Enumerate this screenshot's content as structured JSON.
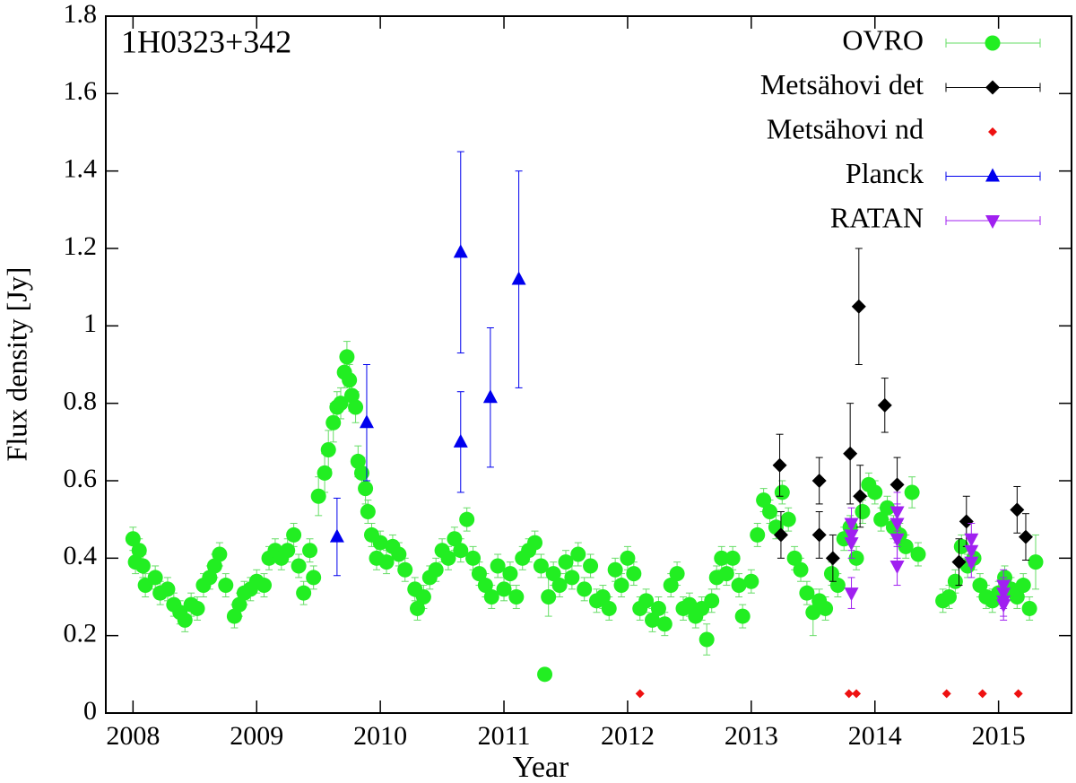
{
  "chart_data": {
    "type": "scatter",
    "annotation": "1H0323+342",
    "xlabel": "Year",
    "ylabel": "Flux density [Jy]",
    "xlim": [
      2007.78,
      2015.59
    ],
    "ylim": [
      0,
      1.8
    ],
    "xticks": [
      2008,
      2009,
      2010,
      2011,
      2012,
      2013,
      2014,
      2015
    ],
    "yticks": [
      0,
      0.2,
      0.4,
      0.6,
      0.8,
      1,
      1.2,
      1.4,
      1.6,
      1.8
    ],
    "legend": "upper right",
    "series": [
      {
        "name": "OVRO",
        "color": "#22ee22",
        "marker": "circle",
        "x": [
          2008.0,
          2008.02,
          2008.05,
          2008.08,
          2008.1,
          2008.18,
          2008.22,
          2008.28,
          2008.33,
          2008.38,
          2008.42,
          2008.47,
          2008.52,
          2008.57,
          2008.62,
          2008.66,
          2008.7,
          2008.75,
          2008.82,
          2008.86,
          2008.9,
          2008.95,
          2009.0,
          2009.06,
          2009.1,
          2009.15,
          2009.2,
          2009.25,
          2009.3,
          2009.34,
          2009.38,
          2009.43,
          2009.46,
          2009.5,
          2009.55,
          2009.58,
          2009.62,
          2009.65,
          2009.68,
          2009.71,
          2009.73,
          2009.75,
          2009.77,
          2009.8,
          2009.82,
          2009.85,
          2009.88,
          2009.9,
          2009.93,
          2009.97,
          2010.0,
          2010.05,
          2010.1,
          2010.15,
          2010.2,
          2010.28,
          2010.3,
          2010.35,
          2010.4,
          2010.45,
          2010.5,
          2010.55,
          2010.6,
          2010.65,
          2010.7,
          2010.75,
          2010.8,
          2010.85,
          2010.9,
          2010.95,
          2011.0,
          2011.05,
          2011.1,
          2011.15,
          2011.2,
          2011.25,
          2011.3,
          2011.33,
          2011.36,
          2011.4,
          2011.45,
          2011.5,
          2011.55,
          2011.6,
          2011.65,
          2011.7,
          2011.75,
          2011.8,
          2011.85,
          2011.9,
          2011.95,
          2012.0,
          2012.05,
          2012.1,
          2012.15,
          2012.2,
          2012.25,
          2012.3,
          2012.35,
          2012.4,
          2012.45,
          2012.5,
          2012.55,
          2012.6,
          2012.64,
          2012.68,
          2012.72,
          2012.76,
          2012.8,
          2012.85,
          2012.9,
          2012.93,
          2013.0,
          2013.05,
          2013.1,
          2013.15,
          2013.2,
          2013.25,
          2013.3,
          2013.35,
          2013.4,
          2013.45,
          2013.5,
          2013.55,
          2013.6,
          2013.65,
          2013.7,
          2013.75,
          2013.8,
          2013.85,
          2013.9,
          2013.95,
          2014.0,
          2014.05,
          2014.1,
          2014.15,
          2014.2,
          2014.25,
          2014.3,
          2014.35,
          2014.55,
          2014.6,
          2014.65,
          2014.7,
          2014.75,
          2014.8,
          2014.85,
          2014.9,
          2014.95,
          2015.0,
          2015.05,
          2015.1,
          2015.15,
          2015.2,
          2015.25,
          2015.3
        ],
        "values": [
          0.45,
          0.39,
          0.42,
          0.38,
          0.33,
          0.35,
          0.31,
          0.32,
          0.28,
          0.26,
          0.24,
          0.28,
          0.27,
          0.33,
          0.35,
          0.38,
          0.41,
          0.33,
          0.25,
          0.28,
          0.31,
          0.32,
          0.34,
          0.33,
          0.4,
          0.42,
          0.4,
          0.42,
          0.46,
          0.38,
          0.31,
          0.42,
          0.35,
          0.56,
          0.62,
          0.68,
          0.75,
          0.79,
          0.8,
          0.88,
          0.92,
          0.86,
          0.82,
          0.79,
          0.65,
          0.62,
          0.58,
          0.52,
          0.46,
          0.4,
          0.44,
          0.39,
          0.43,
          0.41,
          0.37,
          0.32,
          0.27,
          0.3,
          0.35,
          0.37,
          0.42,
          0.4,
          0.45,
          0.42,
          0.5,
          0.4,
          0.36,
          0.33,
          0.3,
          0.38,
          0.32,
          0.36,
          0.3,
          0.4,
          0.42,
          0.44,
          0.38,
          0.1,
          0.3,
          0.36,
          0.33,
          0.39,
          0.35,
          0.41,
          0.32,
          0.38,
          0.29,
          0.3,
          0.27,
          0.37,
          0.33,
          0.4,
          0.36,
          0.27,
          0.29,
          0.24,
          0.27,
          0.23,
          0.33,
          0.36,
          0.27,
          0.28,
          0.25,
          0.27,
          0.19,
          0.29,
          0.35,
          0.4,
          0.36,
          0.4,
          0.33,
          0.25,
          0.34,
          0.46,
          0.55,
          0.52,
          0.48,
          0.57,
          0.5,
          0.4,
          0.37,
          0.31,
          0.26,
          0.29,
          0.27,
          0.36,
          0.33,
          0.45,
          0.48,
          0.4,
          0.52,
          0.59,
          0.57,
          0.5,
          0.53,
          0.48,
          0.46,
          0.43,
          0.57,
          0.41,
          0.29,
          0.3,
          0.34,
          0.43,
          0.38,
          0.4,
          0.33,
          0.3,
          0.29,
          0.31,
          0.35,
          0.32,
          0.3,
          0.33,
          0.27,
          0.39
        ],
        "errors": [
          0.03,
          0.03,
          0.03,
          0.03,
          0.03,
          0.03,
          0.03,
          0.03,
          0.03,
          0.03,
          0.03,
          0.03,
          0.03,
          0.03,
          0.03,
          0.03,
          0.03,
          0.03,
          0.03,
          0.03,
          0.03,
          0.03,
          0.03,
          0.03,
          0.03,
          0.03,
          0.03,
          0.03,
          0.03,
          0.03,
          0.03,
          0.03,
          0.03,
          0.05,
          0.05,
          0.05,
          0.05,
          0.04,
          0.04,
          0.04,
          0.04,
          0.04,
          0.04,
          0.04,
          0.04,
          0.04,
          0.04,
          0.03,
          0.03,
          0.03,
          0.03,
          0.03,
          0.03,
          0.03,
          0.03,
          0.03,
          0.03,
          0.03,
          0.03,
          0.03,
          0.03,
          0.03,
          0.03,
          0.03,
          0.03,
          0.03,
          0.03,
          0.03,
          0.03,
          0.03,
          0.03,
          0.03,
          0.03,
          0.03,
          0.03,
          0.03,
          0.03,
          0.01,
          0.05,
          0.03,
          0.03,
          0.03,
          0.03,
          0.03,
          0.03,
          0.03,
          0.03,
          0.03,
          0.03,
          0.03,
          0.03,
          0.03,
          0.03,
          0.03,
          0.03,
          0.03,
          0.03,
          0.03,
          0.03,
          0.03,
          0.03,
          0.03,
          0.03,
          0.03,
          0.04,
          0.03,
          0.03,
          0.03,
          0.03,
          0.03,
          0.03,
          0.03,
          0.03,
          0.03,
          0.03,
          0.03,
          0.03,
          0.03,
          0.03,
          0.03,
          0.03,
          0.03,
          0.06,
          0.03,
          0.03,
          0.03,
          0.03,
          0.03,
          0.03,
          0.03,
          0.03,
          0.03,
          0.03,
          0.03,
          0.03,
          0.03,
          0.03,
          0.03,
          0.04,
          0.03,
          0.03,
          0.03,
          0.03,
          0.03,
          0.03,
          0.03,
          0.03,
          0.03,
          0.03,
          0.03,
          0.03,
          0.03,
          0.03,
          0.03,
          0.03,
          0.07
        ]
      },
      {
        "name": "Metsähovi det",
        "color": "#000000",
        "marker": "diamond",
        "x": [
          2013.23,
          2013.24,
          2013.55,
          2013.55,
          2013.66,
          2013.8,
          2013.87,
          2013.88,
          2014.08,
          2014.18,
          2014.68,
          2014.74,
          2015.15,
          2015.22
        ],
        "values": [
          0.64,
          0.46,
          0.6,
          0.46,
          0.4,
          0.67,
          1.05,
          0.56,
          0.795,
          0.59,
          0.39,
          0.495,
          0.525,
          0.455
        ],
        "errors": [
          0.08,
          0.06,
          0.06,
          0.06,
          0.06,
          0.13,
          0.15,
          0.08,
          0.07,
          0.07,
          0.06,
          0.065,
          0.06,
          0.06
        ]
      },
      {
        "name": "Metsähovi nd",
        "color": "#ee1111",
        "marker": "small-diamond",
        "x": [
          2012.1,
          2013.79,
          2013.85,
          2014.58,
          2014.87,
          2015.16
        ],
        "values": [
          0.05,
          0.05,
          0.05,
          0.05,
          0.05,
          0.05
        ]
      },
      {
        "name": "Planck",
        "color": "#0000ee",
        "marker": "triangle",
        "x": [
          2009.65,
          2009.89,
          2010.65,
          2010.65,
          2010.89,
          2011.12
        ],
        "values": [
          0.455,
          0.75,
          1.19,
          0.7,
          0.815,
          1.12
        ],
        "errors": [
          0.1,
          0.15,
          0.26,
          0.13,
          0.18,
          0.28
        ]
      },
      {
        "name": "RATAN",
        "color": "#a020f0",
        "marker": "triangle-down",
        "x": [
          2013.81,
          2013.81,
          2013.81,
          2013.81,
          2014.18,
          2014.18,
          2014.18,
          2014.18,
          2014.78,
          2014.78,
          2014.78,
          2015.04,
          2015.04,
          2015.04,
          2015.04
        ],
        "values": [
          0.49,
          0.46,
          0.44,
          0.31,
          0.52,
          0.49,
          0.45,
          0.38,
          0.45,
          0.42,
          0.39,
          0.33,
          0.31,
          0.29,
          0.28
        ],
        "errors": [
          0.04,
          0.04,
          0.04,
          0.04,
          0.05,
          0.05,
          0.05,
          0.05,
          0.04,
          0.04,
          0.04,
          0.04,
          0.04,
          0.04,
          0.04
        ]
      }
    ]
  }
}
